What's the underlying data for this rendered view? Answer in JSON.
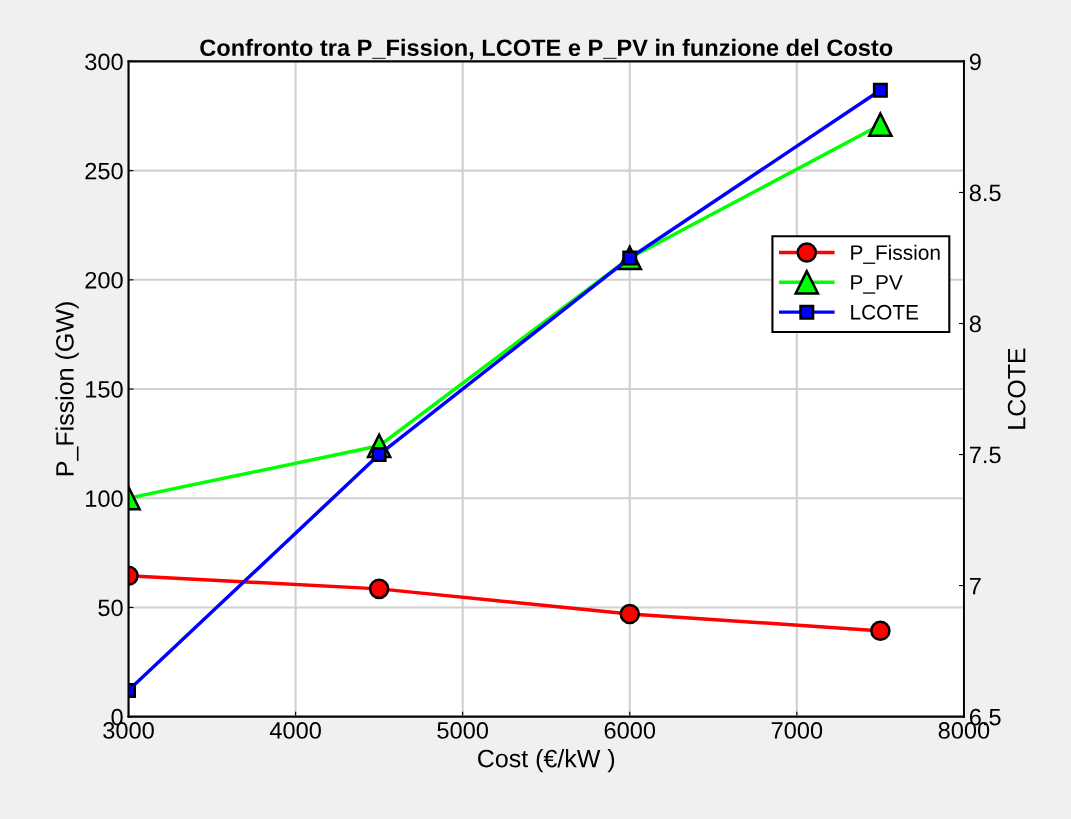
{
  "chart_data": {
    "type": "line",
    "title": "Confronto tra P_Fission, LCOTE e P_PV in funzione del Costo",
    "xlabel": "Cost (€/kW )",
    "ylabel": "P_Fission (GW)",
    "y2label": "LCOTE",
    "x": [
      3000,
      4500,
      6000,
      7500
    ],
    "series": [
      {
        "name": "P_Fission",
        "color": "#ff0000",
        "marker": "circle",
        "values": [
          64.5,
          58.5,
          47,
          39.3
        ]
      },
      {
        "name": "P_PV",
        "color": "#00ff00",
        "marker": "triangle",
        "values": [
          100,
          124,
          210,
          271
        ]
      },
      {
        "name": "LCOTE",
        "color": "#0000ff",
        "marker": "square",
        "axis": "y2",
        "values": [
          6.6,
          7.5,
          8.25,
          8.89
        ]
      }
    ],
    "xlim": [
      3000,
      8000
    ],
    "xticks": [
      3000,
      4000,
      5000,
      6000,
      7000,
      8000
    ],
    "ylim": [
      0,
      300
    ],
    "yticks": [
      0,
      50,
      100,
      150,
      200,
      250,
      300
    ],
    "y2lim": [
      6.5,
      9
    ],
    "y2ticks": [
      6.5,
      7,
      7.5,
      8,
      8.5,
      9
    ],
    "grid": true,
    "legend": "right"
  }
}
